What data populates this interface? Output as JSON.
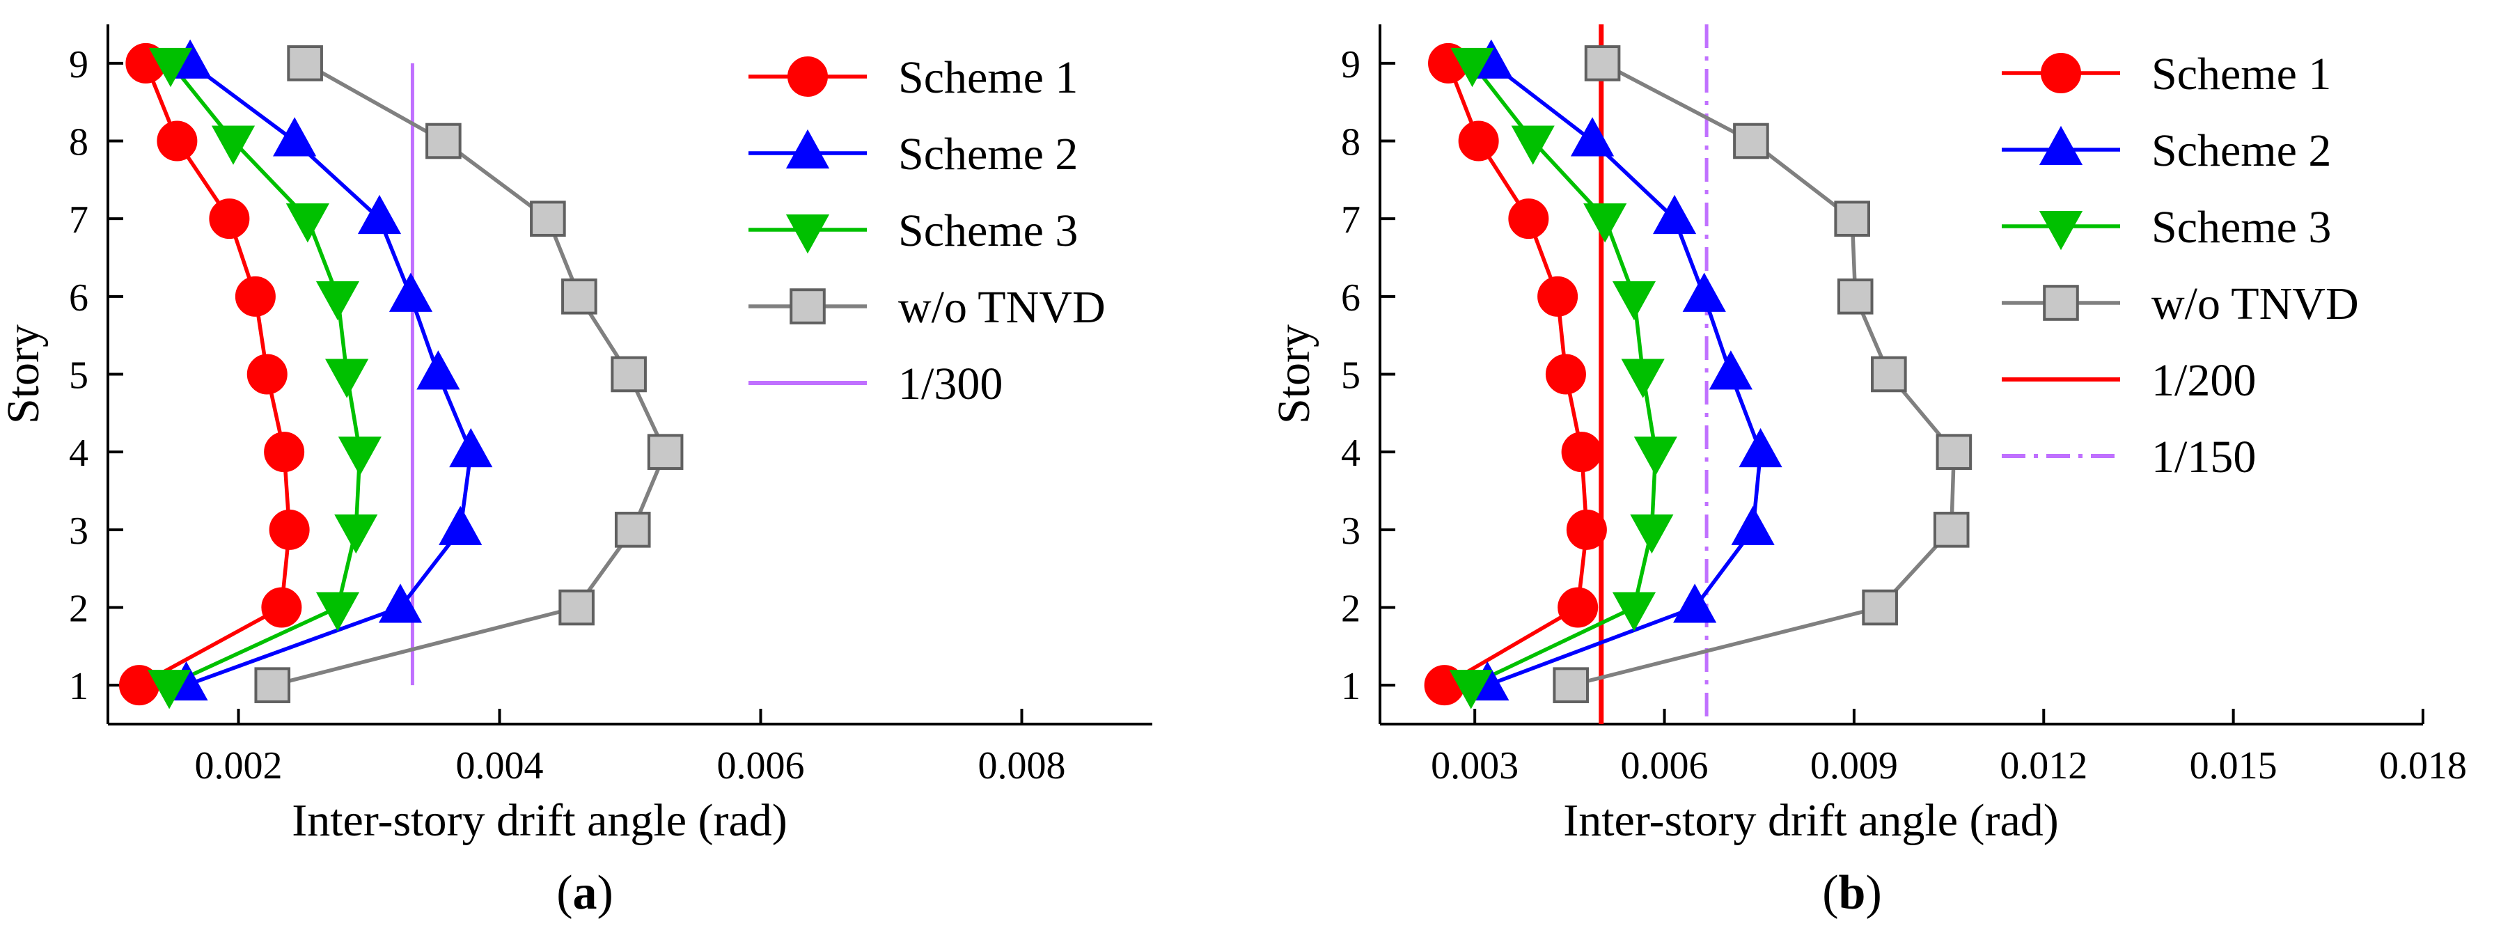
{
  "chart_data": [
    {
      "id": "a",
      "type": "line",
      "orientation": "x-value-y-story",
      "panel_label": "a",
      "xlabel": "Inter-story drift angle (rad)",
      "ylabel": "Story",
      "xlim": [
        0.001,
        0.009
      ],
      "ylim": [
        0.5,
        9.5
      ],
      "xticks": [
        0.002,
        0.004,
        0.006,
        0.008
      ],
      "xtick_labels": [
        "0.002",
        "0.004",
        "0.006",
        "0.008"
      ],
      "yticks": [
        1,
        2,
        3,
        4,
        5,
        6,
        7,
        8,
        9
      ],
      "ytick_labels": [
        "1",
        "2",
        "3",
        "4",
        "5",
        "6",
        "7",
        "8",
        "9"
      ],
      "stories": [
        1,
        2,
        3,
        4,
        5,
        6,
        7,
        8,
        9
      ],
      "series": [
        {
          "name": "Scheme 1",
          "color": "#ff0000",
          "marker": "circle",
          "values": [
            0.00124,
            0.00233,
            0.00239,
            0.00235,
            0.00222,
            0.00213,
            0.00193,
            0.00153,
            0.00129
          ]
        },
        {
          "name": "Scheme 2",
          "color": "#0000ff",
          "marker": "triangle-up",
          "values": [
            0.0016,
            0.00324,
            0.0037,
            0.00378,
            0.00353,
            0.00332,
            0.00308,
            0.00243,
            0.00163
          ]
        },
        {
          "name": "Scheme 3",
          "color": "#00c000",
          "marker": "triangle-down",
          "values": [
            0.00147,
            0.00276,
            0.0029,
            0.00293,
            0.00283,
            0.00276,
            0.00253,
            0.00196,
            0.00148
          ]
        },
        {
          "name": "w/o TNVD",
          "color": "#808080",
          "marker": "square",
          "values": [
            0.00226,
            0.00459,
            0.00502,
            0.00527,
            0.00499,
            0.00461,
            0.00437,
            0.00357,
            0.00251
          ]
        }
      ],
      "reference_lines": [
        {
          "name": "1/300",
          "value": 0.003333,
          "color": "#c070ff",
          "style": "solid",
          "y_range": [
            1,
            9
          ]
        }
      ],
      "legend": [
        "Scheme 1",
        "Scheme 2",
        "Scheme 3",
        "w/o TNVD",
        "1/300"
      ]
    },
    {
      "id": "b",
      "type": "line",
      "orientation": "x-value-y-story",
      "panel_label": "b",
      "xlabel": "Inter-story drift angle (rad)",
      "ylabel": "Story",
      "xlim": [
        0.0015,
        0.018
      ],
      "ylim": [
        0.5,
        9.5
      ],
      "xticks": [
        0.003,
        0.006,
        0.009,
        0.012,
        0.015,
        0.018
      ],
      "xtick_labels": [
        "0.003",
        "0.006",
        "0.009",
        "0.012",
        "0.015",
        "0.018"
      ],
      "yticks": [
        1,
        2,
        3,
        4,
        5,
        6,
        7,
        8,
        9
      ],
      "ytick_labels": [
        "1",
        "2",
        "3",
        "4",
        "5",
        "6",
        "7",
        "8",
        "9"
      ],
      "stories": [
        1,
        2,
        3,
        4,
        5,
        6,
        7,
        8,
        9
      ],
      "series": [
        {
          "name": "Scheme 1",
          "color": "#ff0000",
          "marker": "circle",
          "values": [
            0.00252,
            0.00463,
            0.00477,
            0.00469,
            0.00444,
            0.00431,
            0.00385,
            0.00306,
            0.00258
          ]
        },
        {
          "name": "Scheme 2",
          "color": "#0000ff",
          "marker": "triangle-up",
          "values": [
            0.0032,
            0.00648,
            0.0074,
            0.00752,
            0.00705,
            0.00663,
            0.00616,
            0.00486,
            0.00326
          ]
        },
        {
          "name": "Scheme 3",
          "color": "#00c000",
          "marker": "triangle-down",
          "values": [
            0.00294,
            0.00552,
            0.0058,
            0.00586,
            0.00566,
            0.00552,
            0.00506,
            0.00392,
            0.00296
          ]
        },
        {
          "name": "w/o TNVD",
          "color": "#808080",
          "marker": "square",
          "values": [
            0.00452,
            0.00941,
            0.01054,
            0.01058,
            0.00955,
            0.00902,
            0.00897,
            0.00737,
            0.00502
          ]
        }
      ],
      "reference_lines": [
        {
          "name": "1/200",
          "value": 0.005,
          "color": "#ff0000",
          "style": "solid",
          "y_range": [
            0.5,
            9.5
          ]
        },
        {
          "name": "1/150",
          "value": 0.006667,
          "color": "#c070ff",
          "style": "dashdot",
          "y_range": [
            0.5,
            9.5
          ]
        }
      ],
      "legend": [
        "Scheme 1",
        "Scheme 2",
        "Scheme 3",
        "w/o TNVD",
        "1/200",
        "1/150"
      ]
    }
  ]
}
